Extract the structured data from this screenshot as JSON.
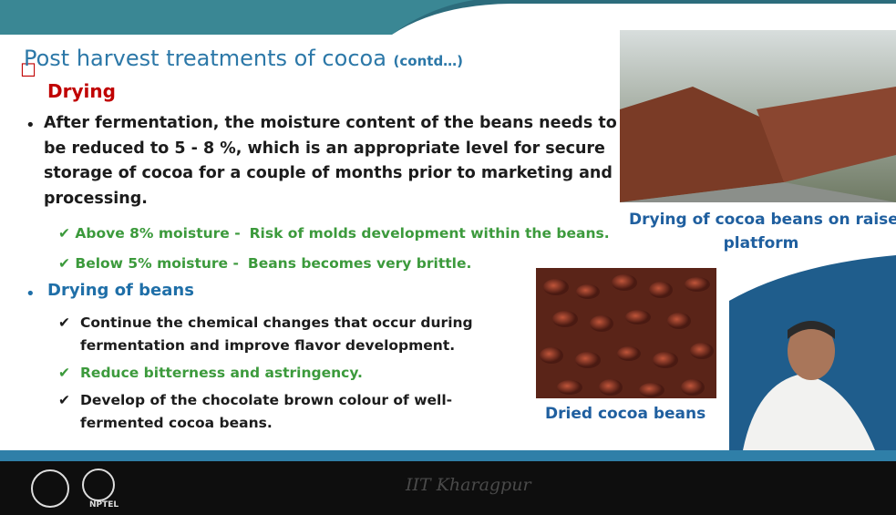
{
  "slide": {
    "title": "Post harvest treatments of cocoa",
    "title_note": "(contd…)",
    "heading": "Drying",
    "bullet1": {
      "lines": [
        "After fermentation, the moisture content of the beans needs to",
        "be reduced to 5 - 8 %, which is an appropriate level for secure",
        "storage of cocoa for a couple of months prior to  marketing and",
        "processing."
      ]
    },
    "checks1": [
      {
        "label": "Above 8% moisture -",
        "text": "Risk of molds development within the beans."
      },
      {
        "label": "Below 5% moisture -",
        "text": "Beans becomes very brittle."
      }
    ],
    "bullet2": "Drying of beans",
    "checks2": [
      {
        "lines": [
          "Continue the chemical changes that occur during",
          "fermentation  and improve flavor development."
        ]
      },
      {
        "lines": [
          "Reduce bitterness and astringency."
        ]
      },
      {
        "lines": [
          "Develop of the chocolate brown colour of well-",
          "fermented cocoa beans."
        ]
      }
    ],
    "caption1": {
      "lines": [
        "Drying of cocoa beans on raised",
        "platform"
      ]
    },
    "caption2": "Dried cocoa beans"
  },
  "footer": {
    "institute": "IIT Kharagpur",
    "logo_text": "NPTEL"
  }
}
